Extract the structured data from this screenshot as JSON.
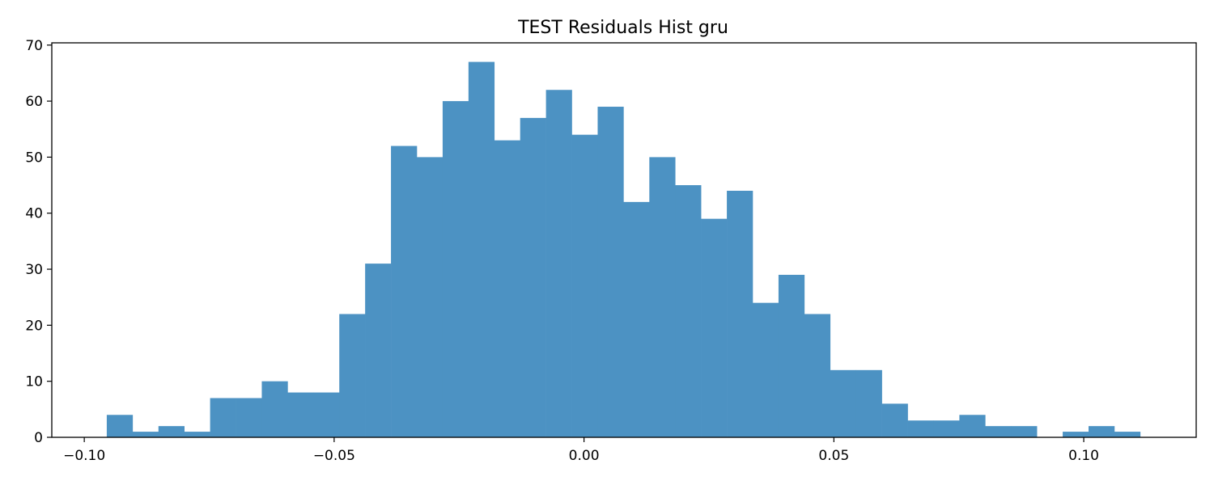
{
  "chart_data": {
    "type": "bar",
    "title": "TEST Residuals Hist gru",
    "xlabel": "",
    "ylabel": "",
    "xlim": [
      -0.1065,
      0.1225
    ],
    "ylim": [
      0,
      70.4
    ],
    "bin_edges": [
      -0.0955,
      -0.09033,
      -0.08516,
      -0.07999,
      -0.07482,
      -0.06965,
      -0.06448,
      -0.05931,
      -0.05414,
      -0.04897,
      -0.0438,
      -0.03863,
      -0.03346,
      -0.02829,
      -0.02312,
      -0.01795,
      -0.01278,
      -0.00761,
      -0.00244,
      0.00273,
      0.0079,
      0.01307,
      0.01824,
      0.02341,
      0.02858,
      0.03375,
      0.03892,
      0.04409,
      0.04926,
      0.05443,
      0.0596,
      0.06477,
      0.06994,
      0.07511,
      0.08028,
      0.08545,
      0.09062,
      0.09579,
      0.10096,
      0.10613,
      0.1113
    ],
    "values": [
      4,
      1,
      2,
      1,
      7,
      7,
      10,
      8,
      8,
      22,
      31,
      52,
      50,
      60,
      67,
      53,
      57,
      62,
      54,
      59,
      42,
      50,
      45,
      39,
      44,
      24,
      29,
      22,
      12,
      12,
      6,
      3,
      3,
      4,
      2,
      2,
      0,
      1,
      2,
      1
    ],
    "x_ticks": [
      {
        "value": -0.1,
        "label": "−0.10"
      },
      {
        "value": -0.05,
        "label": "−0.05"
      },
      {
        "value": 0.0,
        "label": "0.00"
      },
      {
        "value": 0.05,
        "label": "0.05"
      },
      {
        "value": 0.1,
        "label": "0.10"
      }
    ],
    "y_ticks": [
      {
        "value": 0,
        "label": "0"
      },
      {
        "value": 10,
        "label": "10"
      },
      {
        "value": 20,
        "label": "20"
      },
      {
        "value": 30,
        "label": "30"
      },
      {
        "value": 40,
        "label": "40"
      },
      {
        "value": 50,
        "label": "50"
      },
      {
        "value": 60,
        "label": "60"
      },
      {
        "value": 70,
        "label": "70"
      }
    ],
    "bar_color": "#4c92c3",
    "grid": false,
    "legend": "none"
  }
}
